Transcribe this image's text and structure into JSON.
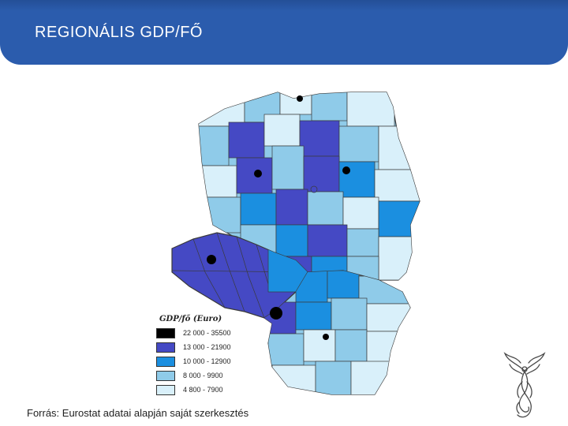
{
  "header": {
    "title": "REGIONÁLIS GDP/FŐ"
  },
  "map": {
    "legend": {
      "title": "GDP/fő (Euro)",
      "items": [
        {
          "label": "22 000 - 35500",
          "color": "#000000"
        },
        {
          "label": "13 000 - 21900",
          "color": "#4549c4"
        },
        {
          "label": "10 000 - 12900",
          "color": "#1b8fe0"
        },
        {
          "label": "8 000 - 9900",
          "color": "#8fcbe9"
        },
        {
          "label": "4 800 - 7900",
          "color": "#d9f0fa"
        }
      ]
    }
  },
  "footer": {
    "source": "Forrás: Eurostat adatai alapján saját szerkesztés"
  },
  "colors": {
    "header": "#2b5cad",
    "border": "#3a3a3a"
  }
}
